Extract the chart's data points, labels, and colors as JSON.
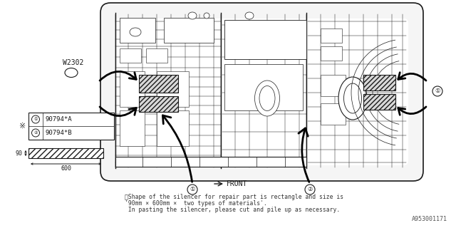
{
  "bg_color": "#ffffff",
  "line_color": "#1a1a1a",
  "label1": "90794*A",
  "label2": "90794*B",
  "w2302": "W2302",
  "front_label": "FRONT",
  "dim_90": "90",
  "dim_600": "600",
  "footer1": "※Shape of the silencer for repair part is rectangle and size is",
  "footer2": "'90mm × 600mm ×  two types of materials'.",
  "footer3": " In pasting the silencer, please cut and pile up as necessary.",
  "part_num": "A953001171",
  "note_star": "※"
}
